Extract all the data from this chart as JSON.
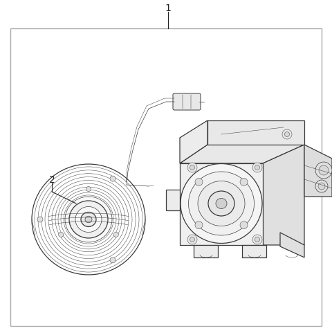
{
  "background_color": "#ffffff",
  "border_color": "#aaaaaa",
  "line_color": "#3a3a3a",
  "label_color": "#222222",
  "title": "1",
  "label2": "2",
  "fig_width": 4.8,
  "fig_height": 4.85,
  "dpi": 100,
  "border_lw": 1.0,
  "main_lw": 0.9,
  "thin_lw": 0.5,
  "detail_lw": 0.35
}
